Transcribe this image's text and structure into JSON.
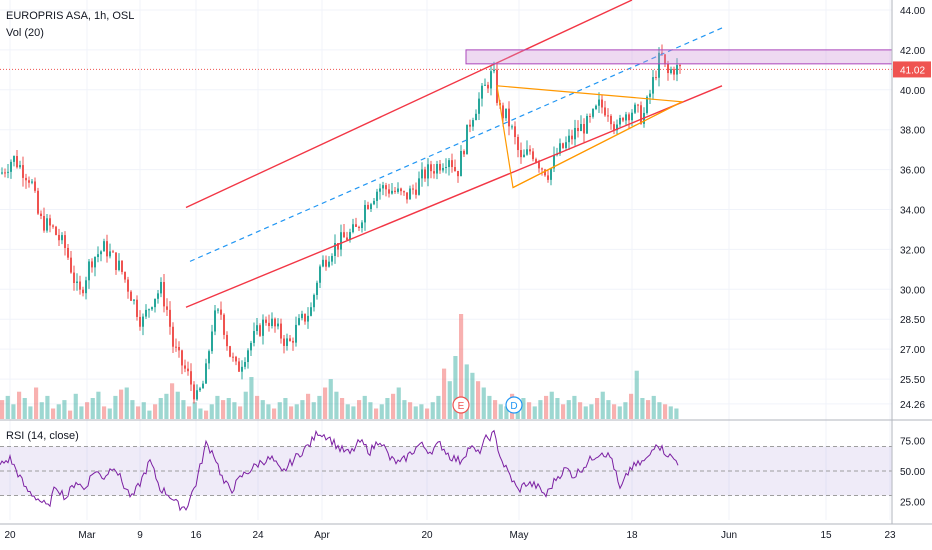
{
  "header": {
    "title": "EUROPRIS ASA, 1h, OSL",
    "volume_label": "Vol (20)",
    "rsi_label": "RSI (14, close)"
  },
  "chart_data": {
    "type": "candlestick",
    "price_axis": {
      "ticks": [
        "44.00",
        "42.00",
        "40.00",
        "38.00",
        "36.00",
        "34.00",
        "32.00",
        "30.00",
        "28.50",
        "27.00",
        "25.50",
        "24.26"
      ],
      "range": [
        23.5,
        44.5
      ],
      "last_price": "41.02",
      "last_price_color": "#ef5350"
    },
    "rsi_axis": {
      "ticks": [
        "75.00",
        "50.00",
        "25.00"
      ],
      "range": [
        10,
        90
      ],
      "band": [
        30,
        70
      ],
      "band_color": "#7e57c2"
    },
    "x_axis": {
      "ticks": [
        "20",
        "Mar",
        "9",
        "16",
        "24",
        "Apr",
        "20",
        "May",
        "18",
        "Jun",
        "15",
        "23"
      ]
    },
    "price_path": [
      [
        0,
        35.8
      ],
      [
        12,
        36.6
      ],
      [
        30,
        35.5
      ],
      [
        38,
        33.5
      ],
      [
        52,
        33.0
      ],
      [
        65,
        32.0
      ],
      [
        78,
        29.6
      ],
      [
        90,
        31.5
      ],
      [
        104,
        32.1
      ],
      [
        120,
        31.0
      ],
      [
        132,
        29.5
      ],
      [
        141,
        28.3
      ],
      [
        152,
        29.6
      ],
      [
        160,
        30.0
      ],
      [
        167,
        28.8
      ],
      [
        172,
        27.2
      ],
      [
        178,
        26.5
      ],
      [
        186,
        25.8
      ],
      [
        196,
        24.5
      ],
      [
        204,
        25.5
      ],
      [
        212,
        28.5
      ],
      [
        220,
        28.8
      ],
      [
        228,
        26.9
      ],
      [
        236,
        25.9
      ],
      [
        246,
        27.0
      ],
      [
        256,
        27.8
      ],
      [
        266,
        28.6
      ],
      [
        278,
        27.8
      ],
      [
        288,
        27.2
      ],
      [
        296,
        28.1
      ],
      [
        310,
        29.0
      ],
      [
        318,
        31.0
      ],
      [
        330,
        32.0
      ],
      [
        342,
        32.5
      ],
      [
        356,
        33.0
      ],
      [
        364,
        34.2
      ],
      [
        378,
        35.1
      ],
      [
        390,
        35.0
      ],
      [
        404,
        34.6
      ],
      [
        414,
        35.1
      ],
      [
        424,
        35.8
      ],
      [
        436,
        36.2
      ],
      [
        448,
        36.7
      ],
      [
        456,
        35.8
      ],
      [
        462,
        37.0
      ],
      [
        470,
        38.6
      ],
      [
        478,
        39.5
      ],
      [
        486,
        40.3
      ],
      [
        492,
        40.9
      ],
      [
        498,
        39.0
      ],
      [
        506,
        38.6
      ],
      [
        512,
        37.8
      ],
      [
        520,
        36.4
      ],
      [
        530,
        37.0
      ],
      [
        540,
        36.2
      ],
      [
        548,
        35.8
      ],
      [
        556,
        36.8
      ],
      [
        566,
        37.3
      ],
      [
        576,
        38.0
      ],
      [
        588,
        38.3
      ],
      [
        598,
        39.2
      ],
      [
        608,
        39.0
      ],
      [
        616,
        37.9
      ],
      [
        622,
        38.8
      ],
      [
        632,
        39.0
      ],
      [
        642,
        38.6
      ],
      [
        648,
        39.6
      ],
      [
        654,
        40.8
      ],
      [
        660,
        41.8
      ],
      [
        666,
        40.7
      ],
      [
        672,
        41.1
      ],
      [
        680,
        41.0
      ]
    ],
    "volume": [
      18,
      22,
      14,
      26,
      20,
      12,
      30,
      16,
      22,
      10,
      14,
      18,
      8,
      24,
      12,
      16,
      20,
      26,
      12,
      10,
      22,
      28,
      30,
      18,
      12,
      16,
      8,
      14,
      20,
      24,
      34,
      26,
      18,
      12,
      16,
      10,
      8,
      14,
      22,
      18,
      20,
      16,
      12,
      26,
      40,
      22,
      18,
      14,
      10,
      16,
      20,
      12,
      14,
      18,
      24,
      16,
      22,
      30,
      38,
      26,
      20,
      14,
      12,
      18,
      22,
      16,
      10,
      14,
      20,
      24,
      30,
      18,
      16,
      12,
      14,
      10,
      16,
      22,
      48,
      36,
      60,
      100,
      52,
      44,
      36,
      30,
      22,
      18,
      14,
      12,
      24,
      18,
      20,
      16,
      12,
      18,
      22,
      26,
      20,
      14,
      18,
      22,
      16,
      12,
      14,
      20,
      26,
      18,
      14,
      12,
      16,
      24,
      46,
      20,
      18,
      22,
      16,
      14,
      12,
      10
    ],
    "rsi_path": [
      [
        0,
        55
      ],
      [
        10,
        60
      ],
      [
        18,
        48
      ],
      [
        26,
        35
      ],
      [
        34,
        30
      ],
      [
        40,
        26
      ],
      [
        48,
        20
      ],
      [
        56,
        38
      ],
      [
        66,
        28
      ],
      [
        76,
        42
      ],
      [
        84,
        35
      ],
      [
        94,
        50
      ],
      [
        104,
        45
      ],
      [
        114,
        55
      ],
      [
        124,
        38
      ],
      [
        132,
        28
      ],
      [
        140,
        40
      ],
      [
        150,
        58
      ],
      [
        160,
        36
      ],
      [
        170,
        30
      ],
      [
        178,
        22
      ],
      [
        186,
        20
      ],
      [
        196,
        40
      ],
      [
        206,
        72
      ],
      [
        214,
        64
      ],
      [
        224,
        40
      ],
      [
        232,
        35
      ],
      [
        242,
        46
      ],
      [
        252,
        52
      ],
      [
        262,
        58
      ],
      [
        272,
        60
      ],
      [
        282,
        48
      ],
      [
        292,
        58
      ],
      [
        302,
        66
      ],
      [
        310,
        72
      ],
      [
        318,
        82
      ],
      [
        328,
        78
      ],
      [
        340,
        68
      ],
      [
        350,
        64
      ],
      [
        360,
        74
      ],
      [
        370,
        66
      ],
      [
        380,
        76
      ],
      [
        390,
        60
      ],
      [
        400,
        56
      ],
      [
        410,
        64
      ],
      [
        420,
        72
      ],
      [
        430,
        66
      ],
      [
        440,
        72
      ],
      [
        450,
        62
      ],
      [
        460,
        58
      ],
      [
        470,
        70
      ],
      [
        478,
        64
      ],
      [
        486,
        76
      ],
      [
        494,
        80
      ],
      [
        502,
        58
      ],
      [
        510,
        46
      ],
      [
        518,
        34
      ],
      [
        526,
        40
      ],
      [
        536,
        38
      ],
      [
        546,
        30
      ],
      [
        556,
        44
      ],
      [
        566,
        52
      ],
      [
        574,
        46
      ],
      [
        584,
        54
      ],
      [
        594,
        62
      ],
      [
        602,
        66
      ],
      [
        612,
        60
      ],
      [
        620,
        34
      ],
      [
        630,
        52
      ],
      [
        640,
        56
      ],
      [
        648,
        60
      ],
      [
        656,
        74
      ],
      [
        662,
        68
      ],
      [
        670,
        62
      ],
      [
        680,
        56
      ]
    ],
    "annotations": [
      {
        "label": "E",
        "color": "#ef5350"
      },
      {
        "label": "D",
        "color": "#2196f3"
      }
    ],
    "drawings": {
      "channel_color": "#f23645",
      "midline_color": "#2196f3",
      "triangle_color": "#ff9800",
      "resistance_color": "#ce93d8"
    },
    "series_colors": {
      "up": "#26a69a",
      "down": "#ef5350"
    }
  }
}
